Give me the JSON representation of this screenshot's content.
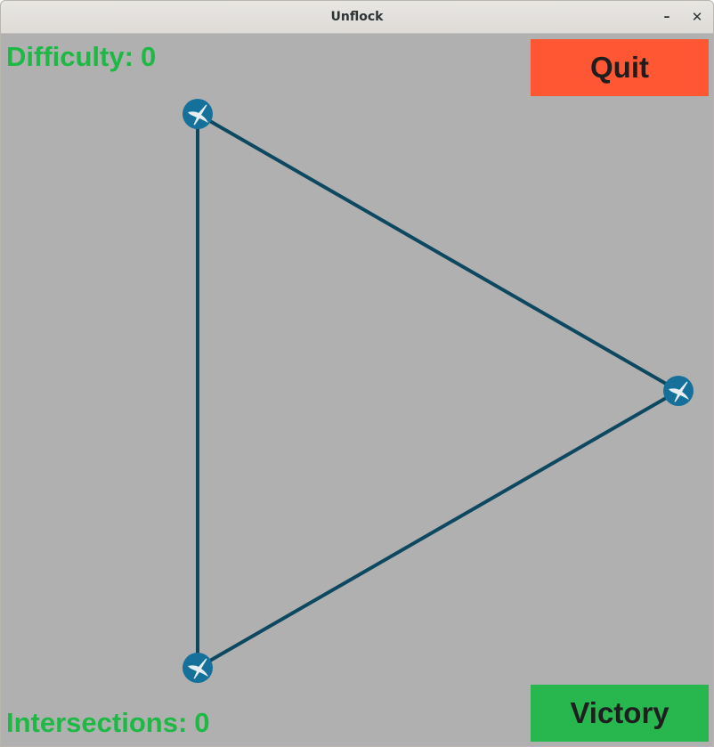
{
  "window": {
    "title": "Unflock",
    "minimize_label": "–",
    "close_label": "✕"
  },
  "hud": {
    "difficulty_label": "Difficulty:",
    "difficulty_value": "0",
    "intersections_label": "Intersections:",
    "intersections_value": "0"
  },
  "buttons": {
    "quit_label": "Quit",
    "victory_label": "Victory"
  },
  "colors": {
    "background": "#b0b0b0",
    "hud_text": "#1db944",
    "quit_button": "#ff5733",
    "victory_button": "#27b74e",
    "edge": "#0d4860",
    "node": "#15709a",
    "node_icon": "#e6eef2"
  },
  "graph": {
    "node_icon": "swallow-bird-icon",
    "node_count": 3,
    "edge_count": 3
  }
}
